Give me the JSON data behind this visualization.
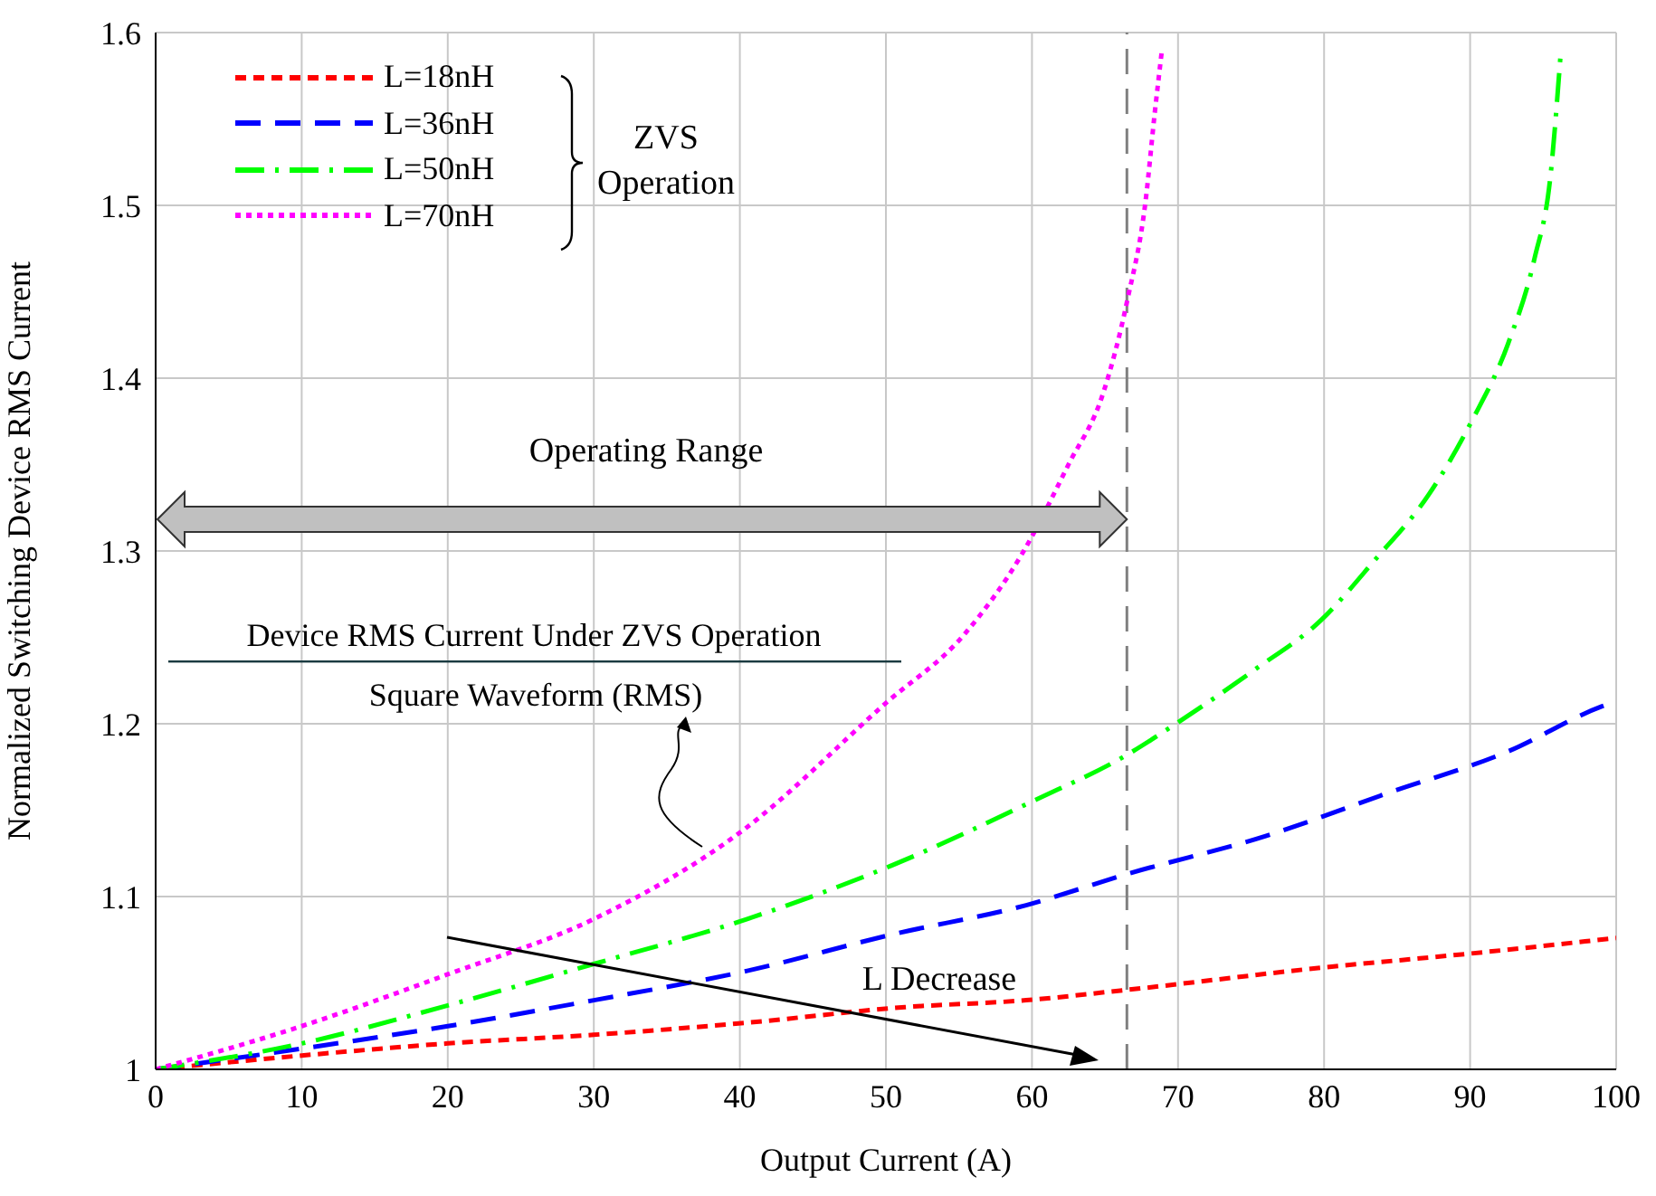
{
  "chart_data": {
    "type": "line",
    "xlabel": "Output Current (A)",
    "ylabel": "Normalized Switching Device RMS Current",
    "xlim": [
      0,
      100
    ],
    "ylim": [
      1,
      1.6
    ],
    "xticks": [
      0,
      10,
      20,
      30,
      40,
      50,
      60,
      70,
      80,
      90,
      100
    ],
    "yticks": [
      1,
      1.1,
      1.2,
      1.3,
      1.4,
      1.5,
      1.6
    ],
    "grid": true,
    "legend": "top left",
    "marker": "none",
    "series": [
      {
        "name": "L=18nH",
        "color": "#ff0000",
        "line_style": "dashed",
        "x": [
          0,
          10,
          20,
          30,
          40.5,
          51.3,
          59.6,
          66.5,
          80,
          90,
          100
        ],
        "values": [
          1,
          1.008,
          1.015,
          1.02,
          1.027,
          1.036,
          1.04,
          1.046,
          1.059,
          1.067,
          1.076
        ]
      },
      {
        "name": "L=36nH",
        "color": "#0000ff",
        "line_style": "dashed",
        "x": [
          0,
          10,
          20,
          30,
          40.5,
          50.4,
          59.6,
          66.5,
          76,
          84.4,
          92.6,
          99,
          100
        ],
        "values": [
          1,
          1.012,
          1.025,
          1.04,
          1.057,
          1.078,
          1.095,
          1.113,
          1.135,
          1.16,
          1.184,
          1.21,
          1.213
        ]
      },
      {
        "name": "L=50nH",
        "color": "#00ff00",
        "line_style": "dashed",
        "x": [
          0,
          10,
          20,
          30,
          40.5,
          50.4,
          60,
          66.5,
          69.5,
          75.2,
          79.8,
          83.5,
          87.2,
          90.1,
          92.6,
          94.4,
          95.5,
          96.2
        ],
        "values": [
          1,
          1.015,
          1.037,
          1.061,
          1.087,
          1.118,
          1.155,
          1.182,
          1.198,
          1.231,
          1.26,
          1.295,
          1.333,
          1.375,
          1.42,
          1.469,
          1.517,
          1.588
        ]
      },
      {
        "name": "L=70nH",
        "color": "#ff00ff",
        "line_style": "dotted",
        "x": [
          0,
          10,
          20,
          30,
          40,
          50,
          55.4,
          59.3,
          62.5,
          64.9,
          66.5,
          67.8,
          68.4,
          68.9
        ],
        "values": [
          1,
          1.025,
          1.055,
          1.087,
          1.137,
          1.212,
          1.252,
          1.298,
          1.35,
          1.392,
          1.444,
          1.504,
          1.553,
          1.59
        ]
      }
    ],
    "ref_lines": [
      {
        "axis": "x",
        "value": 66.5,
        "color": "#808080",
        "line_style": "dashed"
      }
    ],
    "annotations": [
      "ZVS Operation",
      "Device RMS Current Under ZVS Operation",
      "Square Waveform (RMS)",
      "Operating Range",
      "L Decrease"
    ]
  }
}
